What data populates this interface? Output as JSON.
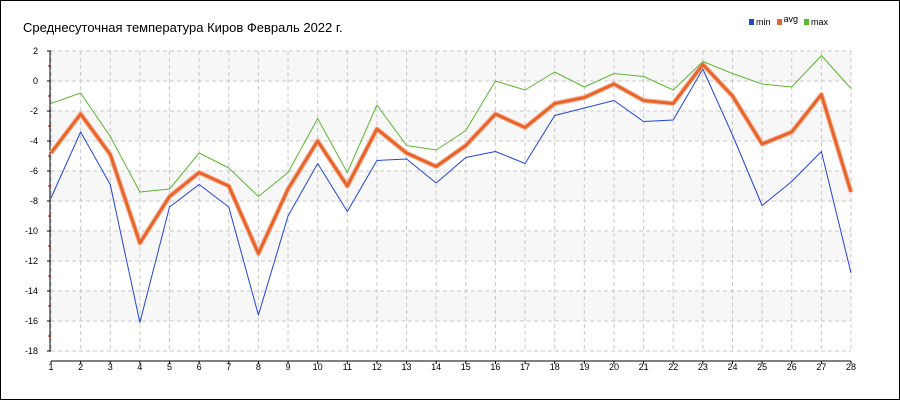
{
  "title": "Среднесуточная температура Киров  Февраль 2022 г.",
  "legend": [
    {
      "label": "min",
      "color": "#2244dd"
    },
    {
      "label": "avg",
      "color": "#e8642a"
    },
    {
      "label": "max",
      "color": "#5cb832"
    }
  ],
  "chart_data": {
    "type": "line",
    "title": "Среднесуточная температура Киров  Февраль 2022 г.",
    "xlabel": "",
    "ylabel": "",
    "x": [
      1,
      2,
      3,
      4,
      5,
      6,
      7,
      8,
      9,
      10,
      11,
      12,
      13,
      14,
      15,
      16,
      17,
      18,
      19,
      20,
      21,
      22,
      23,
      24,
      25,
      26,
      27,
      28
    ],
    "ylim": [
      -18,
      2
    ],
    "yticks": [
      2,
      0,
      -2,
      -4,
      -6,
      -8,
      -10,
      -12,
      -14,
      -16,
      -18
    ],
    "grid": true,
    "legend_position": "top-right",
    "series": [
      {
        "name": "min",
        "color": "#2244dd",
        "values": [
          -7.8,
          -3.4,
          -6.9,
          -16.1,
          -8.4,
          -6.9,
          -8.4,
          -15.6,
          -9.0,
          -5.5,
          -8.7,
          -5.3,
          -5.2,
          -6.8,
          -5.1,
          -4.7,
          -5.5,
          -2.3,
          -1.8,
          -1.3,
          -2.7,
          -2.6,
          0.8,
          -3.6,
          -8.3,
          -6.7,
          -4.7,
          -12.8
        ]
      },
      {
        "name": "avg",
        "color": "#e8642a",
        "values": [
          -4.8,
          -2.2,
          -4.9,
          -10.8,
          -7.7,
          -6.1,
          -7.0,
          -11.5,
          -7.2,
          -4.0,
          -7.0,
          -3.2,
          -4.8,
          -5.7,
          -4.3,
          -2.2,
          -3.1,
          -1.5,
          -1.1,
          -0.2,
          -1.3,
          -1.5,
          1.1,
          -1.0,
          -4.2,
          -3.4,
          -0.9,
          -7.4
        ]
      },
      {
        "name": "max",
        "color": "#5cb832",
        "values": [
          -1.5,
          -0.8,
          -3.7,
          -7.4,
          -7.2,
          -4.8,
          -5.8,
          -7.7,
          -6.1,
          -2.5,
          -6.1,
          -1.6,
          -4.3,
          -4.6,
          -3.3,
          0.0,
          -0.6,
          0.6,
          -0.4,
          0.5,
          0.3,
          -0.6,
          1.3,
          0.5,
          -0.2,
          -0.4,
          1.7,
          -0.5
        ]
      }
    ]
  }
}
